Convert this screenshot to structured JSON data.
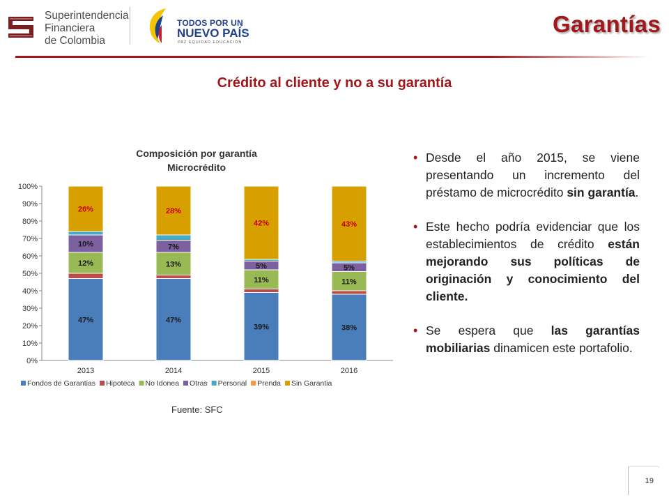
{
  "header": {
    "org_lines": [
      "Superintendencia",
      "Financiera",
      "de Colombia"
    ],
    "gov_logo_line1": "TODOS POR UN",
    "gov_logo_line2": "NUEVO PAÍS",
    "gov_logo_line3": "PAZ  EQUIDAD  EDUCACIÓN",
    "page_title": "Garantías",
    "colors": {
      "accent": "#a0181b",
      "logo_blue": "#1f3f8f"
    },
    "icons": {
      "sfc_logo": "sfc-logo-icon",
      "gov_logo": "colombia-flag-swoosh-icon"
    }
  },
  "subtitle": "Crédito al cliente y no a su garantía",
  "chart_title_line1": "Composición  por garantía",
  "chart_title_line2": "Microcrédito",
  "source": "Fuente: SFC",
  "chart_data": {
    "type": "bar",
    "stacked": true,
    "categories": [
      "2013",
      "2014",
      "2015",
      "2016"
    ],
    "ylim": [
      0,
      100
    ],
    "yticks": [
      "0%",
      "10%",
      "20%",
      "30%",
      "40%",
      "50%",
      "60%",
      "70%",
      "80%",
      "90%",
      "100%"
    ],
    "grid": false,
    "legend_position": "bottom",
    "series": [
      {
        "name": "Fondos de Garantias",
        "color": "#4a7ebb",
        "values": [
          47,
          47,
          39,
          38
        ],
        "labels": [
          "47%",
          "47%",
          "39%",
          "38%"
        ]
      },
      {
        "name": "Hipoteca",
        "color": "#be4b48",
        "values": [
          3,
          2,
          2,
          2
        ],
        "labels": [
          "",
          "",
          "",
          ""
        ]
      },
      {
        "name": "No Idonea",
        "color": "#98b954",
        "values": [
          12,
          13,
          11,
          11
        ],
        "labels": [
          "12%",
          "13%",
          "11%",
          "11%"
        ]
      },
      {
        "name": "Otras",
        "color": "#7d60a0",
        "values": [
          10,
          7,
          5,
          5
        ],
        "labels": [
          "10%",
          "7%",
          "5%",
          "5%"
        ]
      },
      {
        "name": "Personal",
        "color": "#46aac5",
        "values": [
          2,
          3,
          1,
          1
        ],
        "labels": [
          "",
          "",
          "",
          ""
        ]
      },
      {
        "name": "Prenda",
        "color": "#f79646",
        "values": [
          0,
          0,
          0,
          0
        ],
        "labels": [
          "",
          "",
          "",
          ""
        ]
      },
      {
        "name": "Sin Garantia",
        "color": "#d7a000",
        "values": [
          26,
          28,
          42,
          43
        ],
        "labels": [
          "26%",
          "28%",
          "42%",
          "43%"
        ]
      }
    ]
  },
  "bullets": [
    {
      "parts": [
        {
          "text": "Desde el año 2015, se viene presentando un incremento del préstamo de microcrédito ",
          "bold": false
        },
        {
          "text": "sin garantía",
          "bold": true
        },
        {
          "text": ".",
          "bold": false
        }
      ]
    },
    {
      "parts": [
        {
          "text": "Este hecho podría evidenciar que los establecimientos de crédito ",
          "bold": false
        },
        {
          "text": "están mejorando sus políticas de originación y conocimiento del cliente.",
          "bold": true
        }
      ]
    },
    {
      "parts": [
        {
          "text": "Se espera que ",
          "bold": false
        },
        {
          "text": "las garantías mobiliarias",
          "bold": true
        },
        {
          "text": " dinamicen este portafolio.",
          "bold": false
        }
      ]
    }
  ],
  "bullet_marker": "•",
  "page_number": "19"
}
